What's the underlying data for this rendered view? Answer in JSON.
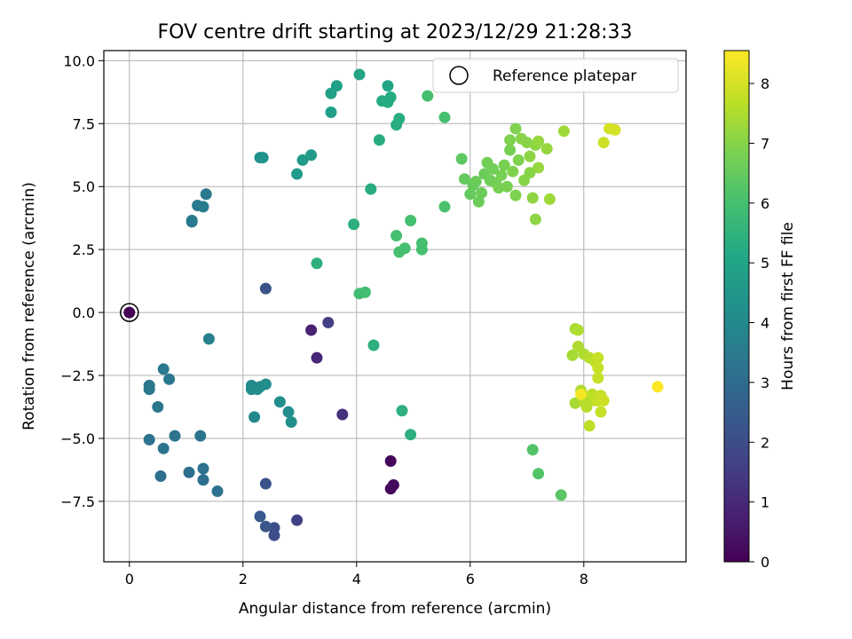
{
  "chart_data": {
    "type": "scatter",
    "title": "FOV centre drift starting at 2023/12/29 21:28:33",
    "xlabel": "Angular distance from reference (arcmin)",
    "ylabel": "Rotation from reference (arcmin)",
    "xlim": [
      -0.45,
      9.8
    ],
    "ylim": [
      -9.9,
      10.4
    ],
    "xticks": [
      0,
      2,
      4,
      6,
      8
    ],
    "yticks": [
      -7.5,
      -5.0,
      -2.5,
      0.0,
      2.5,
      5.0,
      7.5,
      10.0
    ],
    "ytick_labels": [
      "−7.5",
      "−5.0",
      "−2.5",
      "0.0",
      "2.5",
      "5.0",
      "7.5",
      "10.0"
    ],
    "grid": true,
    "legend": {
      "placement": "top-right",
      "entries": [
        "Reference platepar"
      ]
    },
    "colorbar": {
      "label": "Hours from first FF file",
      "range": [
        0,
        8.55
      ],
      "ticks": [
        0,
        1,
        2,
        3,
        4,
        5,
        6,
        7,
        8
      ],
      "colormap": "viridis"
    },
    "reference_point": {
      "x": 0,
      "y": 0
    },
    "points": [
      {
        "x": 0,
        "y": 0,
        "c": 0.0
      },
      {
        "x": 4.6,
        "y": -5.9,
        "c": 0.1
      },
      {
        "x": 4.6,
        "y": -7.0,
        "c": 0.15
      },
      {
        "x": 4.65,
        "y": -6.85,
        "c": 0.2
      },
      {
        "x": 3.2,
        "y": -0.7,
        "c": 0.8
      },
      {
        "x": 3.3,
        "y": -1.8,
        "c": 0.9
      },
      {
        "x": 3.75,
        "y": -4.05,
        "c": 1.2
      },
      {
        "x": 2.95,
        "y": -8.25,
        "c": 1.6
      },
      {
        "x": 3.5,
        "y": -0.4,
        "c": 1.6
      },
      {
        "x": 2.55,
        "y": -8.55,
        "c": 2.0
      },
      {
        "x": 2.55,
        "y": -8.85,
        "c": 2.0
      },
      {
        "x": 2.4,
        "y": 0.95,
        "c": 2.2
      },
      {
        "x": 2.4,
        "y": -6.8,
        "c": 2.2
      },
      {
        "x": 2.3,
        "y": -8.1,
        "c": 2.4
      },
      {
        "x": 2.4,
        "y": -8.5,
        "c": 2.3
      },
      {
        "x": 0.55,
        "y": -6.5,
        "c": 3.1
      },
      {
        "x": 1.05,
        "y": -6.35,
        "c": 3.1
      },
      {
        "x": 1.3,
        "y": -6.65,
        "c": 3.1
      },
      {
        "x": 1.55,
        "y": -7.1,
        "c": 3.2
      },
      {
        "x": 1.3,
        "y": -6.2,
        "c": 3.2
      },
      {
        "x": 0.35,
        "y": -5.05,
        "c": 3.2
      },
      {
        "x": 0.6,
        "y": -5.4,
        "c": 3.3
      },
      {
        "x": 0.8,
        "y": -4.9,
        "c": 3.3
      },
      {
        "x": 1.25,
        "y": -4.9,
        "c": 3.3
      },
      {
        "x": 0.35,
        "y": -2.9,
        "c": 3.4
      },
      {
        "x": 0.35,
        "y": -3.05,
        "c": 3.4
      },
      {
        "x": 0.5,
        "y": -3.75,
        "c": 3.4
      },
      {
        "x": 0.6,
        "y": -2.25,
        "c": 3.4
      },
      {
        "x": 0.7,
        "y": -2.65,
        "c": 3.4
      },
      {
        "x": 1.1,
        "y": 3.6,
        "c": 3.5
      },
      {
        "x": 1.2,
        "y": 4.25,
        "c": 3.5
      },
      {
        "x": 1.3,
        "y": 4.2,
        "c": 3.5
      },
      {
        "x": 1.35,
        "y": 4.7,
        "c": 3.5
      },
      {
        "x": 1.1,
        "y": 3.65,
        "c": 3.5
      },
      {
        "x": 1.4,
        "y": -1.05,
        "c": 3.7
      },
      {
        "x": 2.2,
        "y": -4.15,
        "c": 4.0
      },
      {
        "x": 2.15,
        "y": -2.9,
        "c": 4.0
      },
      {
        "x": 2.15,
        "y": -3.05,
        "c": 4.1
      },
      {
        "x": 2.25,
        "y": -3.05,
        "c": 4.1
      },
      {
        "x": 2.3,
        "y": -2.95,
        "c": 4.1
      },
      {
        "x": 2.4,
        "y": -2.85,
        "c": 4.1
      },
      {
        "x": 2.65,
        "y": -3.55,
        "c": 4.2
      },
      {
        "x": 2.8,
        "y": -3.95,
        "c": 4.2
      },
      {
        "x": 2.85,
        "y": -4.35,
        "c": 4.2
      },
      {
        "x": 2.3,
        "y": 6.15,
        "c": 4.3
      },
      {
        "x": 2.35,
        "y": 6.15,
        "c": 4.3
      },
      {
        "x": 2.95,
        "y": 5.5,
        "c": 4.6
      },
      {
        "x": 3.05,
        "y": 6.05,
        "c": 4.6
      },
      {
        "x": 3.2,
        "y": 6.25,
        "c": 4.6
      },
      {
        "x": 3.55,
        "y": 7.95,
        "c": 4.8
      },
      {
        "x": 3.55,
        "y": 8.7,
        "c": 4.8
      },
      {
        "x": 3.65,
        "y": 9.0,
        "c": 4.8
      },
      {
        "x": 4.05,
        "y": 9.45,
        "c": 5.0
      },
      {
        "x": 4.55,
        "y": 9.0,
        "c": 5.0
      },
      {
        "x": 4.45,
        "y": 8.4,
        "c": 5.2
      },
      {
        "x": 4.55,
        "y": 8.35,
        "c": 5.2
      },
      {
        "x": 4.6,
        "y": 8.55,
        "c": 5.2
      },
      {
        "x": 4.7,
        "y": 7.45,
        "c": 5.3
      },
      {
        "x": 4.75,
        "y": 7.7,
        "c": 5.3
      },
      {
        "x": 4.4,
        "y": 6.85,
        "c": 5.3
      },
      {
        "x": 4.25,
        "y": 4.9,
        "c": 5.3
      },
      {
        "x": 3.95,
        "y": 3.5,
        "c": 5.4
      },
      {
        "x": 3.3,
        "y": 1.95,
        "c": 5.4
      },
      {
        "x": 4.3,
        "y": -1.3,
        "c": 5.4
      },
      {
        "x": 4.8,
        "y": -3.9,
        "c": 5.4
      },
      {
        "x": 4.95,
        "y": -4.85,
        "c": 5.4
      },
      {
        "x": 4.05,
        "y": 0.75,
        "c": 5.9
      },
      {
        "x": 4.15,
        "y": 0.8,
        "c": 5.9
      },
      {
        "x": 4.7,
        "y": 3.05,
        "c": 6.0
      },
      {
        "x": 4.75,
        "y": 2.4,
        "c": 6.0
      },
      {
        "x": 4.85,
        "y": 2.55,
        "c": 6.0
      },
      {
        "x": 4.95,
        "y": 3.65,
        "c": 6.0
      },
      {
        "x": 5.15,
        "y": 2.75,
        "c": 6.0
      },
      {
        "x": 5.15,
        "y": 2.5,
        "c": 6.0
      },
      {
        "x": 5.25,
        "y": 8.6,
        "c": 6.0
      },
      {
        "x": 5.55,
        "y": 7.75,
        "c": 6.0
      },
      {
        "x": 5.55,
        "y": 4.2,
        "c": 6.1
      },
      {
        "x": 7.1,
        "y": -5.45,
        "c": 6.2
      },
      {
        "x": 7.2,
        "y": -6.4,
        "c": 6.2
      },
      {
        "x": 7.6,
        "y": -7.25,
        "c": 6.3
      },
      {
        "x": 5.85,
        "y": 6.1,
        "c": 6.4
      },
      {
        "x": 5.9,
        "y": 5.3,
        "c": 6.5
      },
      {
        "x": 6.0,
        "y": 4.7,
        "c": 6.5
      },
      {
        "x": 6.05,
        "y": 5.05,
        "c": 6.5
      },
      {
        "x": 6.1,
        "y": 5.2,
        "c": 6.6
      },
      {
        "x": 6.15,
        "y": 4.4,
        "c": 6.6
      },
      {
        "x": 6.2,
        "y": 4.75,
        "c": 6.6
      },
      {
        "x": 6.25,
        "y": 5.5,
        "c": 6.6
      },
      {
        "x": 6.3,
        "y": 5.95,
        "c": 6.7
      },
      {
        "x": 6.35,
        "y": 5.25,
        "c": 6.7
      },
      {
        "x": 6.4,
        "y": 5.7,
        "c": 6.7
      },
      {
        "x": 6.45,
        "y": 5.15,
        "c": 6.7
      },
      {
        "x": 6.5,
        "y": 4.95,
        "c": 6.8
      },
      {
        "x": 6.55,
        "y": 5.45,
        "c": 6.8
      },
      {
        "x": 6.6,
        "y": 5.85,
        "c": 6.8
      },
      {
        "x": 6.65,
        "y": 5.0,
        "c": 6.8
      },
      {
        "x": 6.7,
        "y": 6.45,
        "c": 6.8
      },
      {
        "x": 6.7,
        "y": 6.85,
        "c": 6.9
      },
      {
        "x": 6.75,
        "y": 5.6,
        "c": 6.9
      },
      {
        "x": 6.8,
        "y": 7.3,
        "c": 6.9
      },
      {
        "x": 6.8,
        "y": 4.65,
        "c": 6.9
      },
      {
        "x": 6.85,
        "y": 6.05,
        "c": 6.9
      },
      {
        "x": 6.9,
        "y": 6.9,
        "c": 7.0
      },
      {
        "x": 6.95,
        "y": 5.25,
        "c": 7.0
      },
      {
        "x": 7.0,
        "y": 6.75,
        "c": 7.0
      },
      {
        "x": 7.05,
        "y": 5.55,
        "c": 7.0
      },
      {
        "x": 7.05,
        "y": 6.2,
        "c": 7.1
      },
      {
        "x": 7.1,
        "y": 4.55,
        "c": 7.1
      },
      {
        "x": 7.15,
        "y": 6.65,
        "c": 7.1
      },
      {
        "x": 7.15,
        "y": 3.7,
        "c": 7.1
      },
      {
        "x": 7.2,
        "y": 5.75,
        "c": 7.2
      },
      {
        "x": 7.2,
        "y": 6.8,
        "c": 7.2
      },
      {
        "x": 7.35,
        "y": 6.5,
        "c": 7.2
      },
      {
        "x": 7.4,
        "y": 4.5,
        "c": 7.3
      },
      {
        "x": 7.65,
        "y": 7.2,
        "c": 7.3
      },
      {
        "x": 7.8,
        "y": -1.7,
        "c": 7.4
      },
      {
        "x": 7.85,
        "y": -3.6,
        "c": 7.4
      },
      {
        "x": 7.85,
        "y": -0.65,
        "c": 7.4
      },
      {
        "x": 7.9,
        "y": -0.7,
        "c": 7.5
      },
      {
        "x": 7.9,
        "y": -1.35,
        "c": 7.5
      },
      {
        "x": 7.95,
        "y": -3.1,
        "c": 7.5
      },
      {
        "x": 8.0,
        "y": -1.65,
        "c": 7.5
      },
      {
        "x": 8.0,
        "y": -3.55,
        "c": 7.6
      },
      {
        "x": 8.05,
        "y": -3.35,
        "c": 7.6
      },
      {
        "x": 8.05,
        "y": -3.75,
        "c": 7.6
      },
      {
        "x": 8.1,
        "y": -1.8,
        "c": 7.6
      },
      {
        "x": 8.1,
        "y": -4.5,
        "c": 7.7
      },
      {
        "x": 8.15,
        "y": -3.25,
        "c": 7.7
      },
      {
        "x": 8.2,
        "y": -3.5,
        "c": 7.7
      },
      {
        "x": 8.2,
        "y": -1.95,
        "c": 7.7
      },
      {
        "x": 8.25,
        "y": -1.8,
        "c": 7.8
      },
      {
        "x": 8.25,
        "y": -2.2,
        "c": 7.8
      },
      {
        "x": 8.25,
        "y": -2.6,
        "c": 7.8
      },
      {
        "x": 8.25,
        "y": -3.5,
        "c": 7.8
      },
      {
        "x": 8.3,
        "y": -3.3,
        "c": 7.8
      },
      {
        "x": 8.3,
        "y": -3.95,
        "c": 7.8
      },
      {
        "x": 8.35,
        "y": -3.5,
        "c": 7.9
      },
      {
        "x": 8.35,
        "y": 6.75,
        "c": 7.9
      },
      {
        "x": 8.45,
        "y": 7.3,
        "c": 8.0
      },
      {
        "x": 8.55,
        "y": 7.25,
        "c": 8.0
      },
      {
        "x": 7.95,
        "y": -3.25,
        "c": 8.4
      },
      {
        "x": 9.3,
        "y": -2.95,
        "c": 8.55
      }
    ]
  }
}
